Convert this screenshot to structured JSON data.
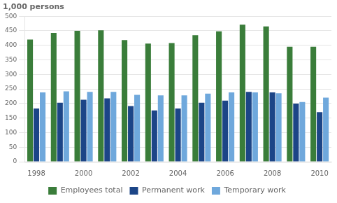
{
  "chart_data": {
    "type": "bar",
    "ylabel": "1,000 persons",
    "categories": [
      "1998",
      null,
      "2000",
      null,
      "2002",
      null,
      "2004",
      null,
      "2006",
      null,
      "2008",
      null,
      "2010"
    ],
    "series": [
      {
        "name": "Employees total",
        "color": "#3a7d3a",
        "values": [
          420,
          443,
          450,
          452,
          418,
          406,
          408,
          435,
          448,
          471,
          465,
          395,
          395
        ]
      },
      {
        "name": "Permanent work",
        "color": "#1c4587",
        "values": [
          183,
          203,
          213,
          218,
          191,
          176,
          183,
          203,
          210,
          240,
          238,
          200,
          170
        ]
      },
      {
        "name": "Temporary work",
        "color": "#6fa8dc",
        "values": [
          238,
          242,
          240,
          240,
          230,
          228,
          228,
          234,
          238,
          238,
          235,
          205,
          220
        ]
      }
    ],
    "ylim": [
      0,
      500
    ],
    "yticks": [
      0,
      50,
      100,
      150,
      200,
      250,
      300,
      350,
      400,
      450,
      500
    ],
    "grid": true,
    "legend": "bottom"
  }
}
